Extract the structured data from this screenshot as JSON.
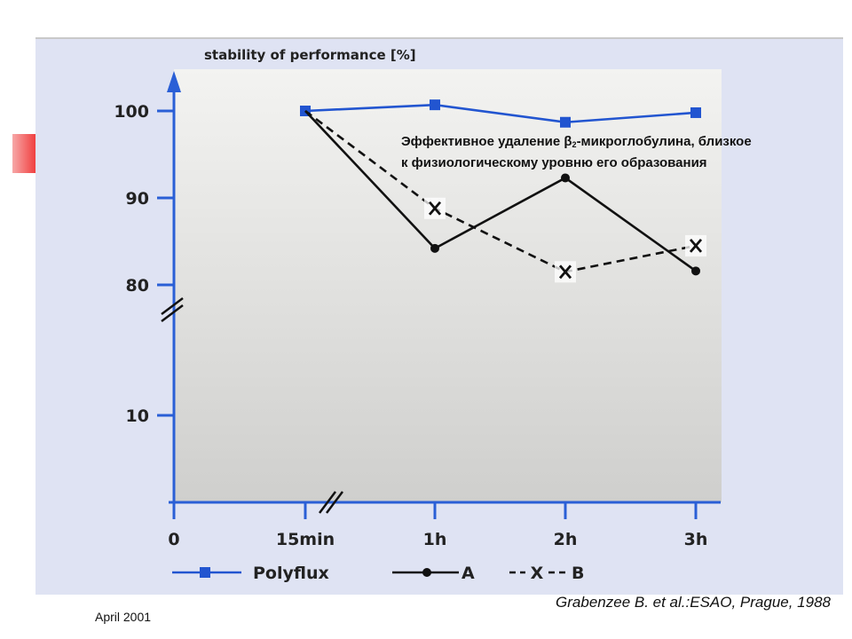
{
  "chart_data": {
    "type": "line",
    "title": "",
    "ylabel": "stability of performance [%]",
    "xlabel": "",
    "categories": [
      "0",
      "15min",
      "1h",
      "2h",
      "3h"
    ],
    "y_ticks": [
      "100",
      "90",
      "80",
      "10"
    ],
    "y_axis_break": "between 80 and 10",
    "x_axis_break": "between 0 and 15min",
    "grid": false,
    "legend_position": "bottom",
    "series": [
      {
        "name": "Polyflux",
        "x": [
          "15min",
          "1h",
          "2h",
          "3h"
        ],
        "values": [
          100,
          100.7,
          98.7,
          99.8
        ],
        "color": "#2255d0",
        "style": "solid",
        "marker": "square"
      },
      {
        "name": "A",
        "x": [
          "15min",
          "1h",
          "2h",
          "3h"
        ],
        "values": [
          100,
          84.2,
          92.3,
          81.6
        ],
        "color": "#111111",
        "style": "solid",
        "marker": "dot"
      },
      {
        "name": "B",
        "x": [
          "15min",
          "1h",
          "2h",
          "3h"
        ],
        "values": [
          100,
          88.8,
          81.5,
          84.5
        ],
        "color": "#111111",
        "style": "dashed",
        "marker": "x"
      }
    ],
    "legend": [
      {
        "label": "Polyflux"
      },
      {
        "label": "A"
      },
      {
        "label": "X",
        "suffix": "B"
      }
    ]
  },
  "annotation": {
    "line1_before": "Эффективное удаление β",
    "line1_sub": "2",
    "line1_after": "-микроглобулина, близкое",
    "line2": "к физиологическому уровню его образования"
  },
  "citation": "Grabenzee B. et al.:ESAO, Prague, 1988",
  "date_label": "April 2001"
}
